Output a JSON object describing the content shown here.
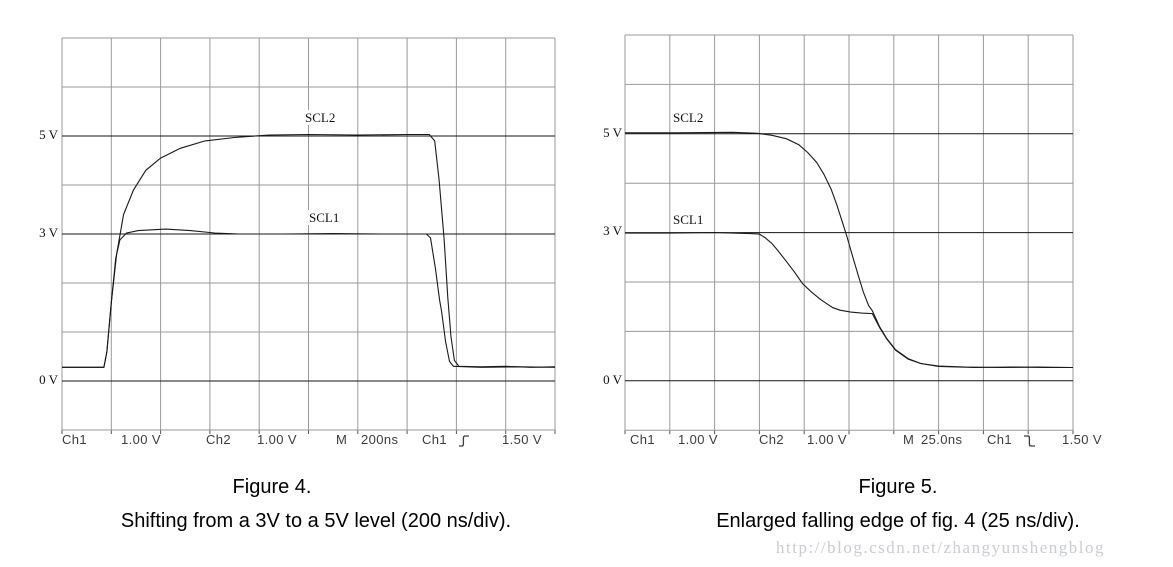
{
  "watermark": {
    "text": "http://blog.csdn.net/zhangyunshengblog",
    "color": "#c9ccd1"
  },
  "colors": {
    "trace": "#1a1a1a",
    "grid_minor": "#9a9a9a",
    "grid_labeled": "#151515",
    "tick": "#555555",
    "readout_text": "#3d3d3d"
  },
  "figures": [
    {
      "axis_labels": {
        "v5": "5 V",
        "v3": "3 V",
        "v0": "0 V"
      },
      "scl2_label": "SCL2",
      "scl1_label": "SCL1",
      "readout": {
        "ch1": "Ch1",
        "ch1_scale": "1.00 V",
        "ch2": "Ch2",
        "ch2_scale": "1.00 V",
        "m": "M",
        "timebase": "200ns",
        "trig_ch": "Ch1",
        "trigger_edge": "rising",
        "trig_level": "1.50 V"
      },
      "caption": {
        "title": "Figure 4.",
        "subtitle": "Shifting from a 3V to a 5V level (200 ns/div)."
      }
    },
    {
      "axis_labels": {
        "v5": "5 V",
        "v3": "3 V",
        "v0": "0 V"
      },
      "scl2_label": "SCL2",
      "scl1_label": "SCL1",
      "readout": {
        "ch1": "Ch1",
        "ch1_scale": "1.00 V",
        "ch2": "Ch2",
        "ch2_scale": "1.00 V",
        "m": "M",
        "timebase": "25.0ns",
        "trig_ch": "Ch1",
        "trigger_edge": "falling",
        "trig_level": "1.50 V"
      },
      "caption": {
        "title": "Figure 5.",
        "subtitle": "Enlarged falling edge of fig. 4 (25 ns/div)."
      }
    }
  ],
  "chart_data": [
    {
      "id": "fig4",
      "type": "line",
      "title": "Figure 4.",
      "subtitle": "Shifting from a 3V to a 5V level (200 ns/div).",
      "x_unit": "ns",
      "ns_per_div": 200,
      "x_range": [
        0,
        2000
      ],
      "volts_per_div": 1.0,
      "y_range_volts": [
        -1,
        7
      ],
      "grid_divs": {
        "cols": 10,
        "rows": 8
      },
      "labeled_levels_volts": [
        5,
        3,
        0
      ],
      "legend": [
        "SCL2",
        "SCL1"
      ],
      "series": [
        {
          "name": "SCL2",
          "points": [
            [
              0,
              0.28
            ],
            [
              170,
              0.28
            ],
            [
              182,
              0.6
            ],
            [
              200,
              1.6
            ],
            [
              222,
              2.6
            ],
            [
              250,
              3.4
            ],
            [
              290,
              3.9
            ],
            [
              340,
              4.3
            ],
            [
              400,
              4.55
            ],
            [
              480,
              4.75
            ],
            [
              580,
              4.9
            ],
            [
              700,
              4.97
            ],
            [
              840,
              5.02
            ],
            [
              1000,
              5.03
            ],
            [
              1200,
              5.02
            ],
            [
              1400,
              5.03
            ],
            [
              1490,
              5.03
            ],
            [
              1512,
              4.9
            ],
            [
              1530,
              4.1
            ],
            [
              1550,
              2.9
            ],
            [
              1565,
              1.7
            ],
            [
              1578,
              0.9
            ],
            [
              1592,
              0.42
            ],
            [
              1610,
              0.3
            ],
            [
              1700,
              0.29
            ],
            [
              1800,
              0.3
            ],
            [
              1900,
              0.28
            ],
            [
              2000,
              0.29
            ]
          ]
        },
        {
          "name": "SCL1",
          "points": [
            [
              0,
              0.28
            ],
            [
              170,
              0.28
            ],
            [
              182,
              0.6
            ],
            [
              200,
              1.6
            ],
            [
              218,
              2.5
            ],
            [
              235,
              2.88
            ],
            [
              262,
              3.02
            ],
            [
              310,
              3.07
            ],
            [
              420,
              3.1
            ],
            [
              520,
              3.07
            ],
            [
              620,
              3.02
            ],
            [
              720,
              3.0
            ],
            [
              900,
              3.0
            ],
            [
              1100,
              3.01
            ],
            [
              1300,
              3.0
            ],
            [
              1478,
              3.0
            ],
            [
              1495,
              2.92
            ],
            [
              1515,
              2.3
            ],
            [
              1532,
              1.65
            ],
            [
              1540,
              1.42
            ],
            [
              1556,
              0.8
            ],
            [
              1572,
              0.4
            ],
            [
              1588,
              0.3
            ],
            [
              1700,
              0.28
            ],
            [
              1850,
              0.29
            ],
            [
              2000,
              0.28
            ]
          ]
        }
      ]
    },
    {
      "id": "fig5",
      "type": "line",
      "title": "Figure 5.",
      "subtitle": "Enlarged falling edge of fig. 4 (25 ns/div).",
      "x_unit": "ns",
      "ns_per_div": 25,
      "x_range": [
        0,
        250
      ],
      "volts_per_div": 1.0,
      "y_range_volts": [
        -1,
        7
      ],
      "grid_divs": {
        "cols": 10,
        "rows": 8
      },
      "labeled_levels_volts": [
        5,
        3,
        0
      ],
      "legend": [
        "SCL2",
        "SCL1"
      ],
      "series": [
        {
          "name": "SCL2",
          "points": [
            [
              0,
              5.02
            ],
            [
              30,
              5.02
            ],
            [
              60,
              5.03
            ],
            [
              74,
              5.01
            ],
            [
              82,
              4.97
            ],
            [
              90,
              4.9
            ],
            [
              97,
              4.78
            ],
            [
              102,
              4.62
            ],
            [
              107,
              4.42
            ],
            [
              111,
              4.18
            ],
            [
              115,
              3.88
            ],
            [
              118,
              3.58
            ],
            [
              121,
              3.25
            ],
            [
              124,
              2.9
            ],
            [
              127,
              2.52
            ],
            [
              130,
              2.15
            ],
            [
              133,
              1.8
            ],
            [
              136,
              1.52
            ],
            [
              138,
              1.42
            ],
            [
              142,
              1.1
            ],
            [
              146,
              0.86
            ],
            [
              151,
              0.63
            ],
            [
              158,
              0.45
            ],
            [
              165,
              0.35
            ],
            [
              175,
              0.3
            ],
            [
              190,
              0.28
            ],
            [
              210,
              0.27
            ],
            [
              230,
              0.28
            ],
            [
              250,
              0.27
            ]
          ]
        },
        {
          "name": "SCL1",
          "points": [
            [
              0,
              2.99
            ],
            [
              25,
              2.99
            ],
            [
              50,
              3.0
            ],
            [
              70,
              2.98
            ],
            [
              75,
              2.97
            ],
            [
              78,
              2.9
            ],
            [
              82,
              2.78
            ],
            [
              85,
              2.65
            ],
            [
              90,
              2.42
            ],
            [
              95,
              2.18
            ],
            [
              99,
              1.97
            ],
            [
              104,
              1.8
            ],
            [
              109,
              1.65
            ],
            [
              113,
              1.55
            ],
            [
              116,
              1.48
            ],
            [
              120,
              1.43
            ],
            [
              126,
              1.39
            ],
            [
              132,
              1.37
            ],
            [
              138,
              1.36
            ],
            [
              142,
              1.08
            ],
            [
              146,
              0.85
            ],
            [
              151,
              0.62
            ],
            [
              158,
              0.44
            ],
            [
              165,
              0.35
            ],
            [
              175,
              0.29
            ],
            [
              195,
              0.27
            ],
            [
              215,
              0.28
            ],
            [
              235,
              0.27
            ],
            [
              250,
              0.27
            ]
          ]
        }
      ]
    }
  ]
}
